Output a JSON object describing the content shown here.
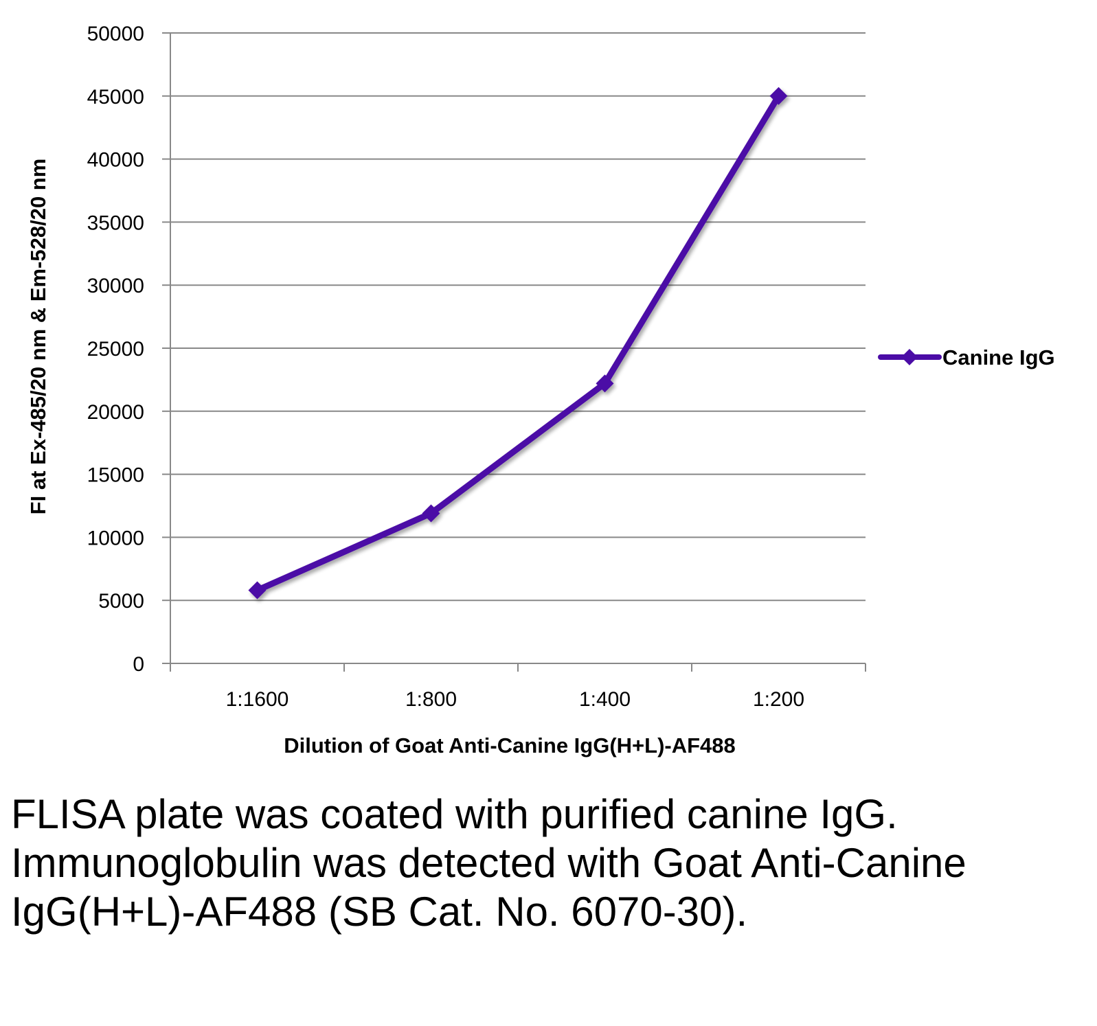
{
  "chart_data": {
    "type": "line",
    "categories": [
      "1:1600",
      "1:800",
      "1:400",
      "1:200"
    ],
    "series": [
      {
        "name": "Canine IgG",
        "values": [
          5800,
          11900,
          22200,
          45000
        ],
        "color": "#4B0CA6",
        "marker": "diamond"
      }
    ],
    "xlabel": "Dilution of Goat Anti-Canine IgG(H+L)-AF488",
    "ylabel": "FI at Ex-485/20 nm & Em-528/20 nm",
    "ylim": [
      0,
      50000
    ],
    "yticks": [
      0,
      5000,
      10000,
      15000,
      20000,
      25000,
      30000,
      35000,
      40000,
      45000,
      50000
    ],
    "grid": true,
    "gridline_color": "#888888",
    "legend_position": "right"
  },
  "caption": "FLISA plate was coated with purified canine IgG.  Immunoglobulin was detected with Goat Anti-Canine IgG(H+L)-AF488 (SB Cat. No. 6070-30)."
}
